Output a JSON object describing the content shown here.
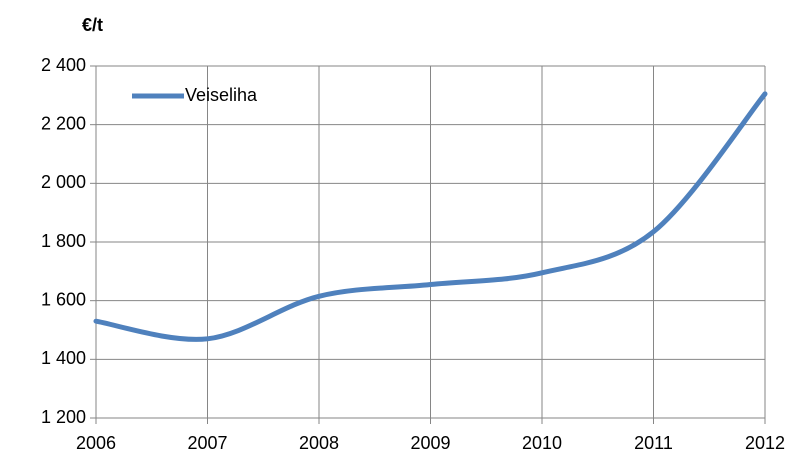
{
  "chart_data": {
    "type": "line",
    "y_label": "€/t",
    "x": [
      2006,
      2007,
      2008,
      2009,
      2010,
      2011,
      2012
    ],
    "series": [
      {
        "name": "Veiseliha",
        "color": "#4f81bd",
        "values": [
          1530,
          1470,
          1615,
          1655,
          1695,
          1835,
          2305
        ]
      }
    ],
    "xlim": [
      2006,
      2012
    ],
    "xticks": [
      2006,
      2007,
      2008,
      2009,
      2010,
      2011,
      2012
    ],
    "ylim": [
      1200,
      2400
    ],
    "yticks": [
      {
        "value": 1200,
        "label": "1 200"
      },
      {
        "value": 1400,
        "label": "1 400"
      },
      {
        "value": 1600,
        "label": "1 600"
      },
      {
        "value": 1800,
        "label": "1 800"
      },
      {
        "value": 2000,
        "label": "2 000"
      },
      {
        "value": 2200,
        "label": "2 200"
      },
      {
        "value": 2400,
        "label": "2 400"
      }
    ],
    "grid": true,
    "legend": "top-left"
  }
}
